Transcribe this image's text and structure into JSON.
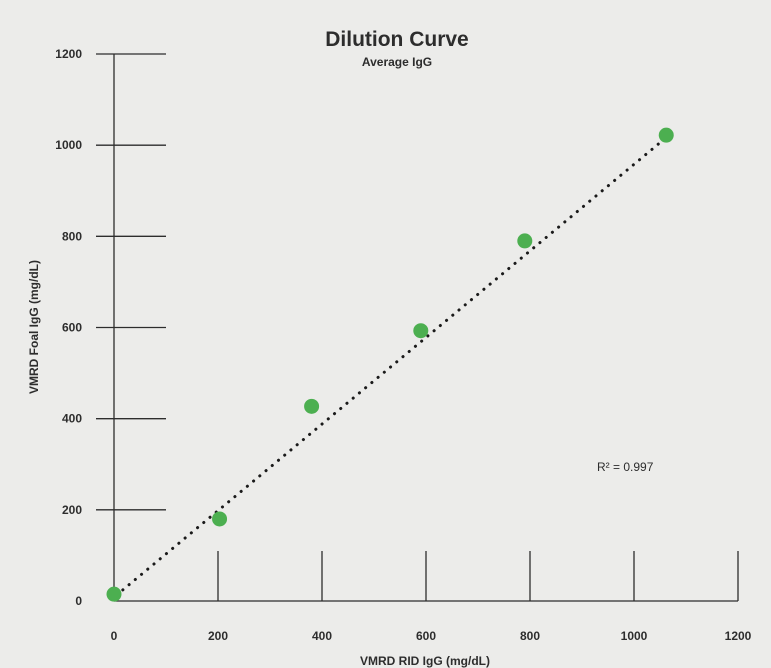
{
  "chart_data": {
    "type": "scatter",
    "title": "Dilution Curve",
    "subtitle": "Average IgG",
    "xlabel": "VMRD RID IgG (mg/dL)",
    "ylabel": "VMRD Foal IgG (mg/dL)",
    "xlim": [
      0,
      1200
    ],
    "ylim": [
      0,
      1200
    ],
    "xticks": [
      0,
      200,
      400,
      600,
      800,
      1000,
      1200
    ],
    "yticks": [
      0,
      200,
      400,
      600,
      800,
      1000,
      1200
    ],
    "series": [
      {
        "points": [
          {
            "x": 0,
            "y": 15
          },
          {
            "x": 203,
            "y": 180
          },
          {
            "x": 380,
            "y": 427
          },
          {
            "x": 590,
            "y": 593
          },
          {
            "x": 790,
            "y": 790
          },
          {
            "x": 1062,
            "y": 1022
          }
        ],
        "color": "#4caf50"
      }
    ],
    "trendline": {
      "style": "dotted",
      "color": "#1a1a1a",
      "from": {
        "x": 5,
        "y": 13
      },
      "to": {
        "x": 1060,
        "y": 1015
      }
    },
    "annotation": "R² = 0.997",
    "grid": false
  }
}
